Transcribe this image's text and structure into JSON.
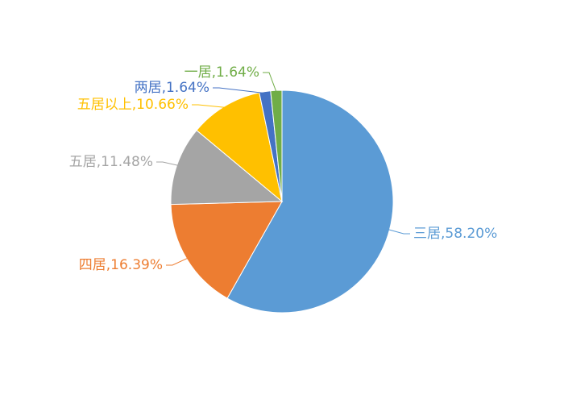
{
  "chart_data": {
    "type": "pie",
    "labels": [
      "三居,58.20%",
      "四居,16.39%",
      "五居,11.48%",
      "五居以上,10.66%",
      "两居,1.64%",
      "一居,1.64%"
    ],
    "values": [
      58.2,
      16.39,
      11.48,
      10.66,
      1.64,
      1.64
    ],
    "colors": [
      "#5b9bd5",
      "#ed7d31",
      "#a5a5a5",
      "#ffc000",
      "#4472c4",
      "#70ad47"
    ]
  }
}
